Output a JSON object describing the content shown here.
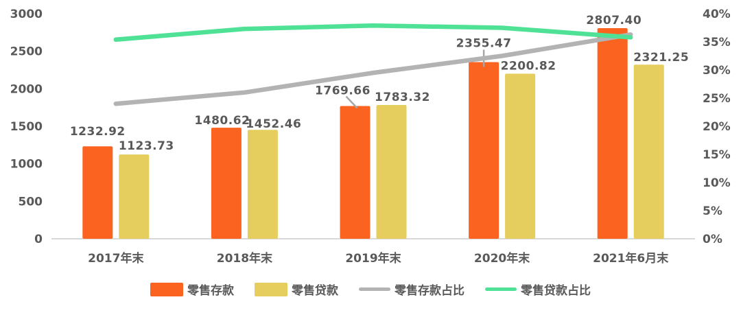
{
  "chart_data": {
    "type": "combo_bar_line",
    "background": "#FFFFFF",
    "text_color": "#595959",
    "axis_line_color": "#D9D9D9",
    "leader_line_color": "#A6A6A6",
    "categories": [
      "2017年末",
      "2018年末",
      "2019年末",
      "2020年末",
      "2021年6月末"
    ],
    "bar_series": [
      {
        "id": "deposits",
        "name": "零售存款",
        "color": "#FB6420",
        "axis": "left",
        "values": [
          1232.92,
          1480.62,
          1769.66,
          2355.47,
          2807.4
        ],
        "labels": [
          "1232.92",
          "1480.62",
          "1769.66",
          "2355.47",
          "2807.40"
        ]
      },
      {
        "id": "loans",
        "name": "零售贷款",
        "color": "#E5CD5E",
        "axis": "left",
        "values": [
          1123.73,
          1452.46,
          1783.32,
          2200.82,
          2321.25
        ],
        "labels": [
          "1123.73",
          "1452.46",
          "1783.32",
          "2200.82",
          "2321.25"
        ]
      }
    ],
    "line_series": [
      {
        "id": "deposit_ratio",
        "name": "零售存款占比",
        "color": "#B3B3B3",
        "axis": "right",
        "values_pct": [
          24.0,
          26.0,
          29.5,
          32.5,
          36.3
        ]
      },
      {
        "id": "loan_ratio",
        "name": "零售贷款占比",
        "color": "#4FE195",
        "axis": "right",
        "values_pct": [
          35.4,
          37.3,
          37.9,
          37.5,
          35.8
        ]
      }
    ],
    "left_axis": {
      "min": 0,
      "max": 3000,
      "step": 500,
      "ticks": [
        "0",
        "500",
        "1000",
        "1500",
        "2000",
        "2500",
        "3000"
      ]
    },
    "right_axis": {
      "min": 0,
      "max": 40,
      "step": 5,
      "ticks": [
        "0%",
        "5%",
        "10%",
        "15%",
        "20%",
        "25%",
        "30%",
        "35%",
        "40%"
      ]
    },
    "legend": [
      {
        "id": "deposits",
        "label": "零售存款",
        "swatch": "rect",
        "color": "#FB6420"
      },
      {
        "id": "loans",
        "label": "零售贷款",
        "swatch": "rect",
        "color": "#E5CD5E"
      },
      {
        "id": "deposit_ratio",
        "label": "零售存款占比",
        "swatch": "line",
        "color": "#B3B3B3"
      },
      {
        "id": "loan_ratio",
        "label": "零售贷款占比",
        "swatch": "line",
        "color": "#4FE195"
      }
    ]
  }
}
